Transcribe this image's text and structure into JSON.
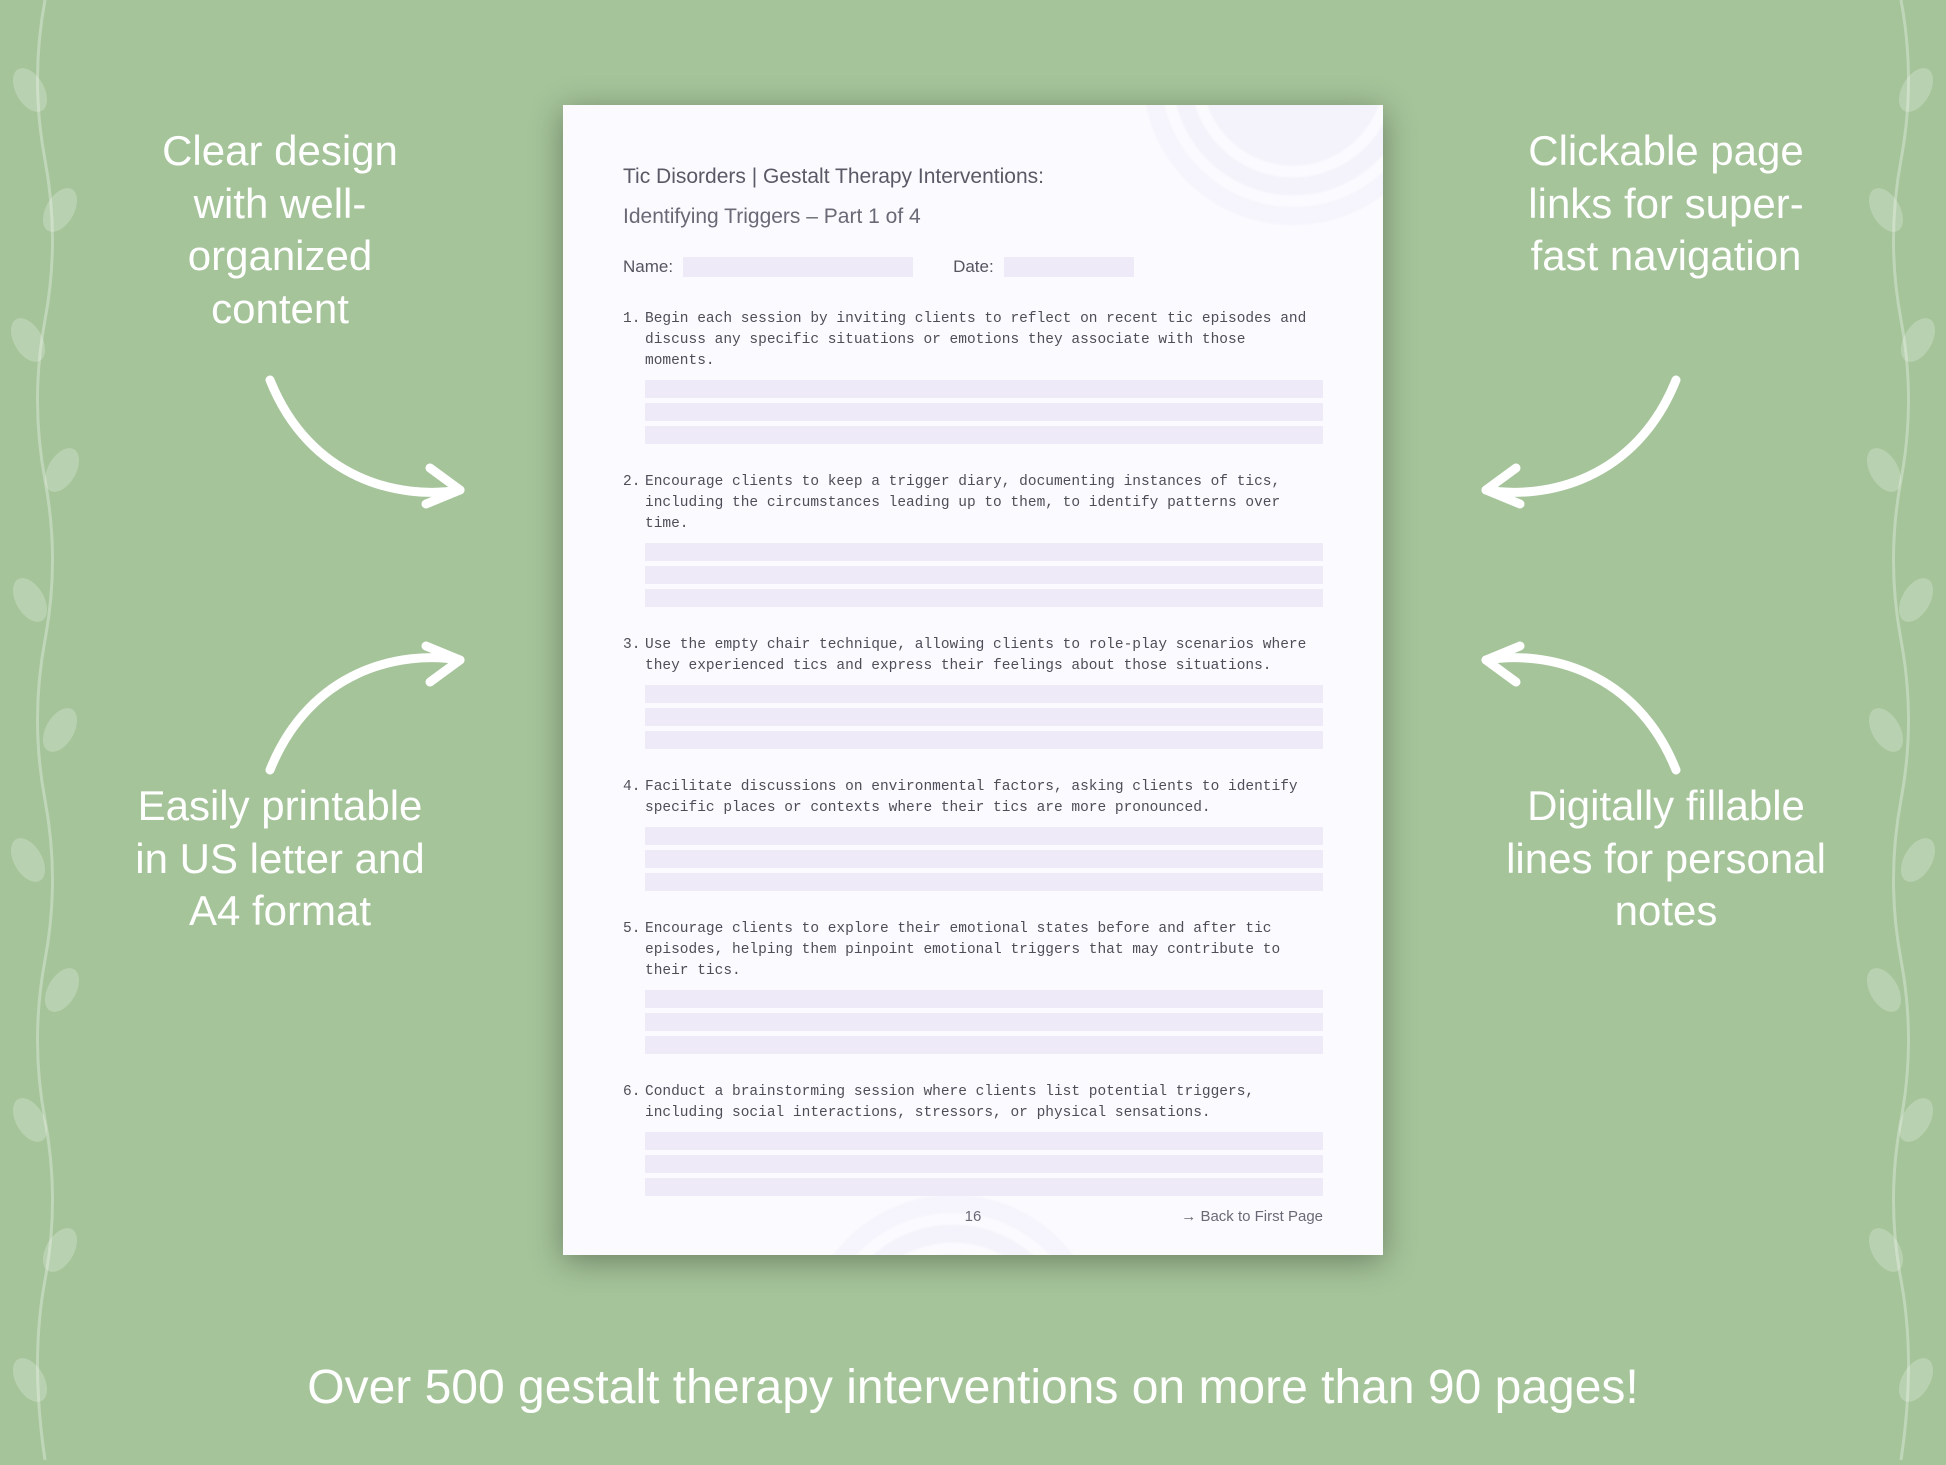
{
  "background_color": "#a5c49a",
  "text_color": "#ffffff",
  "callouts": {
    "top_left": "Clear design with well-organized content",
    "top_right": "Clickable page links for super-fast navigation",
    "bottom_left": "Easily printable in US letter and A4 format",
    "bottom_right": "Digitally fillable lines for personal notes"
  },
  "tagline": "Over 500 gestalt therapy interventions on more than 90 pages!",
  "document": {
    "page_bg": "#fbfaff",
    "fill_line_color": "#efeaf7",
    "text_color": "#555560",
    "mono_font": "Consolas, Menlo, Courier New, monospace",
    "title": "Tic Disorders | Gestalt Therapy Interventions:",
    "subtitle": "Identifying Triggers  – Part 1 of 4",
    "meta": {
      "name_label": "Name:",
      "date_label": "Date:"
    },
    "items": [
      "Begin each session by inviting clients to reflect on recent tic episodes and discuss any specific situations or emotions they associate with those moments.",
      "Encourage clients to keep a trigger diary, documenting instances of tics, including the circumstances leading up to them, to identify patterns over time.",
      "Use the empty chair technique, allowing clients to role-play scenarios where they experienced tics and express their feelings about those situations.",
      "Facilitate discussions on environmental factors, asking clients to identify specific places or contexts where their tics are more pronounced.",
      "Encourage clients to explore their emotional states before and after tic episodes, helping them pinpoint emotional triggers that may contribute to their tics.",
      "Conduct a brainstorming session where clients list potential triggers, including social interactions, stressors, or physical sensations."
    ],
    "lines_per_item": 3,
    "page_number": "16",
    "back_link": "→ Back to First Page"
  }
}
